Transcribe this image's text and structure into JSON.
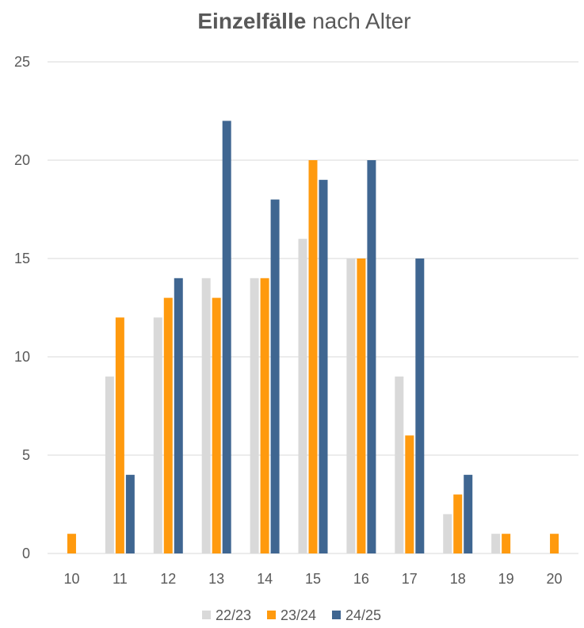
{
  "chart_data": {
    "type": "bar",
    "title": {
      "bold": "Einzelfälle",
      "rest": " nach Alter"
    },
    "xlabel": "",
    "ylabel": "",
    "categories": [
      "10",
      "11",
      "12",
      "13",
      "14",
      "15",
      "16",
      "17",
      "18",
      "19",
      "20"
    ],
    "yticks": [
      "0",
      "5",
      "10",
      "15",
      "20",
      "25"
    ],
    "ylim": [
      0,
      25
    ],
    "grid": true,
    "legend_position": "bottom",
    "series": [
      {
        "name": "22/23",
        "color": "#d9d9d9",
        "values": [
          0,
          9,
          12,
          14,
          14,
          16,
          15,
          9,
          2,
          1,
          0
        ]
      },
      {
        "name": "23/24",
        "color": "#ff9a0e",
        "values": [
          1,
          12,
          13,
          13,
          14,
          20,
          15,
          6,
          3,
          1,
          1
        ]
      },
      {
        "name": "24/25",
        "color": "#3f6691",
        "values": [
          0,
          4,
          14,
          22,
          18,
          19,
          20,
          15,
          4,
          0,
          0
        ]
      }
    ]
  }
}
